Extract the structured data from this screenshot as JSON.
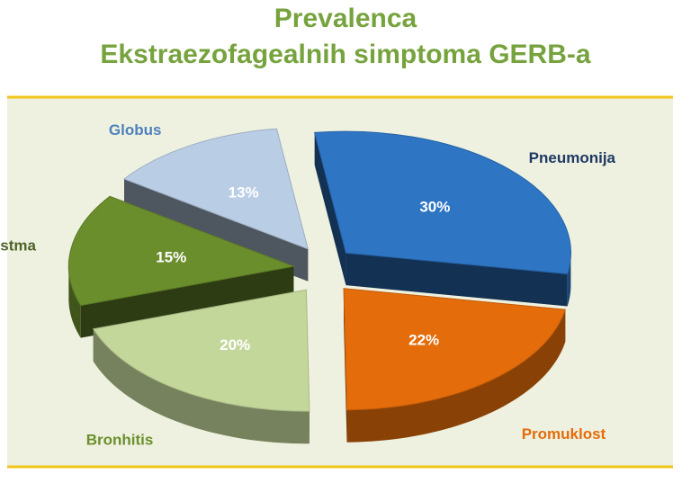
{
  "title_lines": [
    "Prevalenca",
    "Ekstraezofagealnih simptoma GERB-a"
  ],
  "chart_data": {
    "type": "pie",
    "style": "3d-exploded",
    "categories": [
      "Pneumonija",
      "Promuklost",
      "Bronhitis",
      "Astma",
      "Globus"
    ],
    "values": [
      30,
      22,
      20,
      15,
      13
    ],
    "value_labels": [
      "30%",
      "22%",
      "20%",
      "15%",
      "13%"
    ],
    "colors": {
      "Pneumonija": "#2e75c4",
      "Promuklost": "#e46c0a",
      "Bronhitis": "#c4d79b",
      "Astma": "#6b8e2d",
      "Globus": "#b9cde5"
    },
    "category_label_colors": {
      "Pneumonija": "#1f3864",
      "Promuklost": "#e46c0a",
      "Bronhitis": "#6b8e2d",
      "Astma": "#4f6228",
      "Globus": "#4f81bd"
    },
    "plot_background": "#eef1df",
    "rule_color": "#f0c419"
  }
}
